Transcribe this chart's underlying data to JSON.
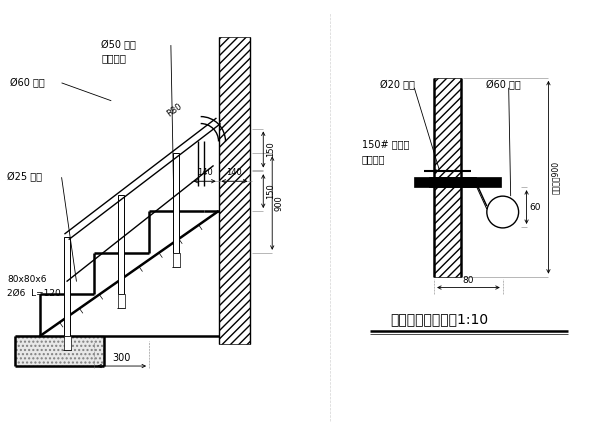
{
  "bg_color": "#ffffff",
  "line_color": "#000000",
  "title": "楼梯靠墙扶手节点1:10",
  "label_060_left": "Ø60 钗管",
  "label_050": "Ø50 钗管",
  "label_050b": "每步一根",
  "label_025": "Ø25 圆钓",
  "label_080": "80x80x6",
  "label_206": "2Ø6  L=120",
  "label_r80": "R80",
  "label_020": "Ø20 圆钓",
  "label_060_right": "Ø60 钗管",
  "label_150concrete": "150# 混凝土",
  "label_embed": "嵌入墙内",
  "label_lishi": "离蹏步高900"
}
